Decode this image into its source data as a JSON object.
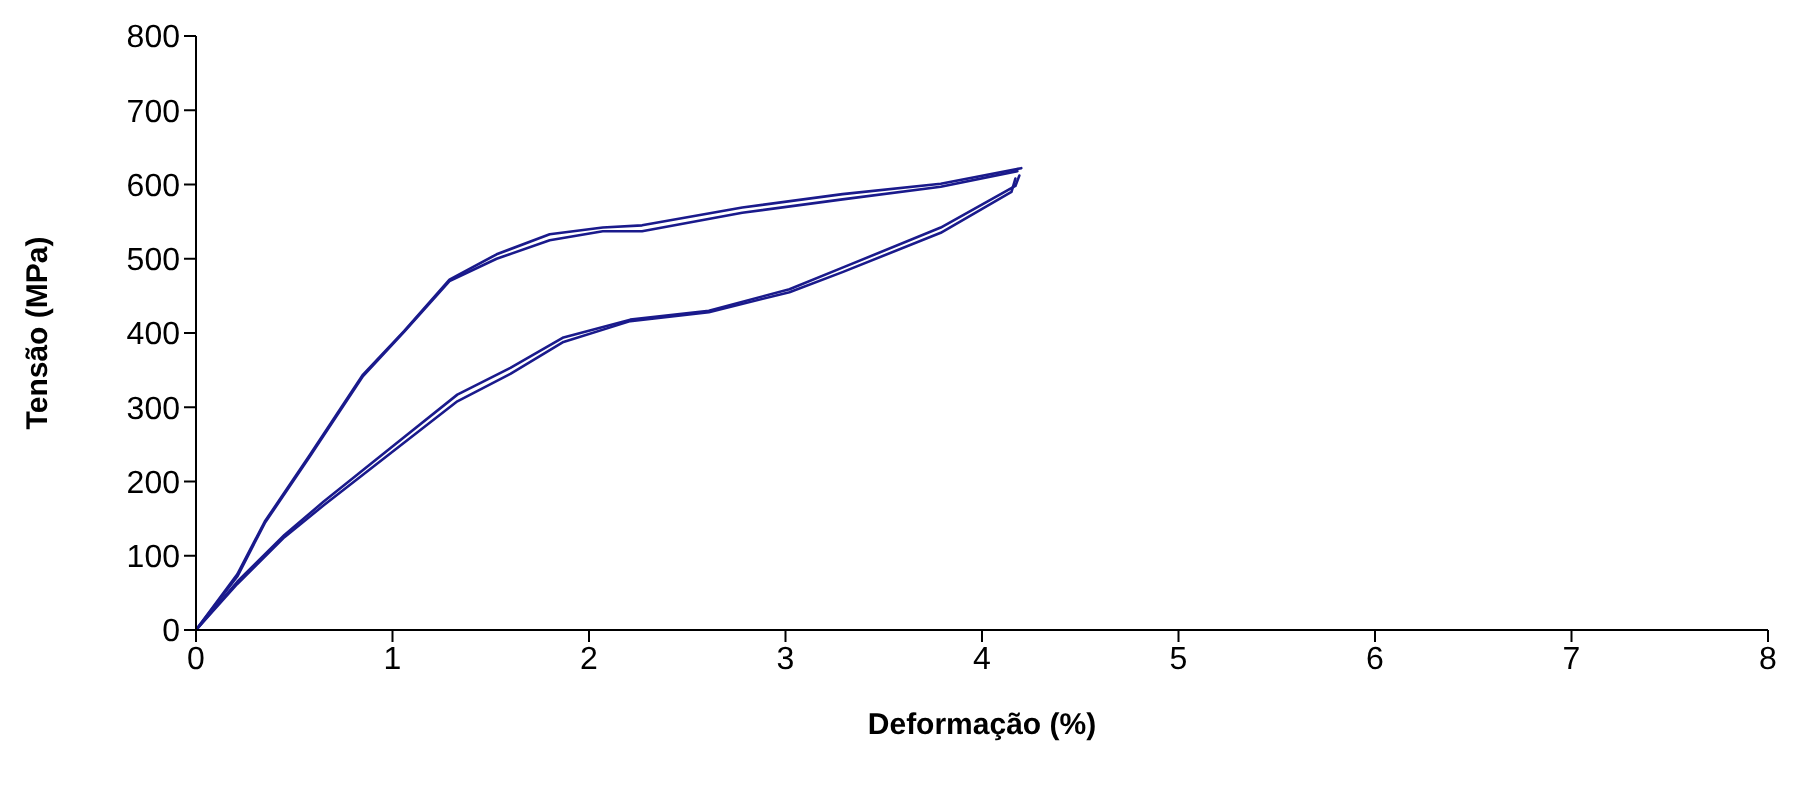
{
  "chart_data": {
    "type": "line",
    "xlabel": "Deformação (%)",
    "ylabel": "Tensão (MPa)",
    "xlim": [
      0,
      8
    ],
    "xticks": [
      0,
      1,
      2,
      3,
      4,
      5,
      6,
      7,
      8
    ],
    "ylim": [
      0,
      800
    ],
    "yticks": [
      0,
      100,
      200,
      300,
      400,
      500,
      600,
      700,
      800
    ],
    "grid": false,
    "legend": false,
    "marker": "none",
    "line_style": "solid",
    "series": [
      {
        "color": "#1a1a8c",
        "x": [
          0,
          0.21,
          0.35,
          0.58,
          0.85,
          1.06,
          1.29,
          1.53,
          1.8,
          2.07,
          2.27,
          2.78,
          3.29,
          3.79,
          4.2
        ],
        "values": [
          0,
          75,
          146,
          236,
          344,
          403,
          472,
          506,
          533,
          542,
          545,
          569,
          587,
          601,
          622
        ]
      },
      {
        "color": "#1a1a8c",
        "x": [
          0,
          0.21,
          0.45,
          0.65,
          0.99,
          1.33,
          1.6,
          1.87,
          2.21,
          2.61,
          3.02,
          3.29,
          3.79,
          4.17,
          4.19
        ],
        "values": [
          0,
          65,
          128,
          173,
          245,
          317,
          353,
          394,
          418,
          430,
          459,
          488,
          542,
          598,
          612
        ]
      },
      {
        "color": "#1a1a8c",
        "x": [
          0,
          0.21,
          0.35,
          0.58,
          0.85,
          1.06,
          1.29,
          1.53,
          1.8,
          2.07,
          2.27,
          2.78,
          3.29,
          3.79,
          4.18
        ],
        "values": [
          0,
          72,
          144,
          234,
          342,
          402,
          470,
          500,
          525,
          537,
          537,
          562,
          580,
          597,
          618
        ]
      },
      {
        "color": "#1a1a8c",
        "x": [
          0,
          0.21,
          0.45,
          0.65,
          0.99,
          1.33,
          1.6,
          1.87,
          2.21,
          2.61,
          3.02,
          3.29,
          3.79,
          4.15,
          4.17
        ],
        "values": [
          0,
          62,
          125,
          168,
          238,
          308,
          345,
          388,
          416,
          428,
          455,
          482,
          535,
          590,
          608
        ]
      }
    ]
  }
}
